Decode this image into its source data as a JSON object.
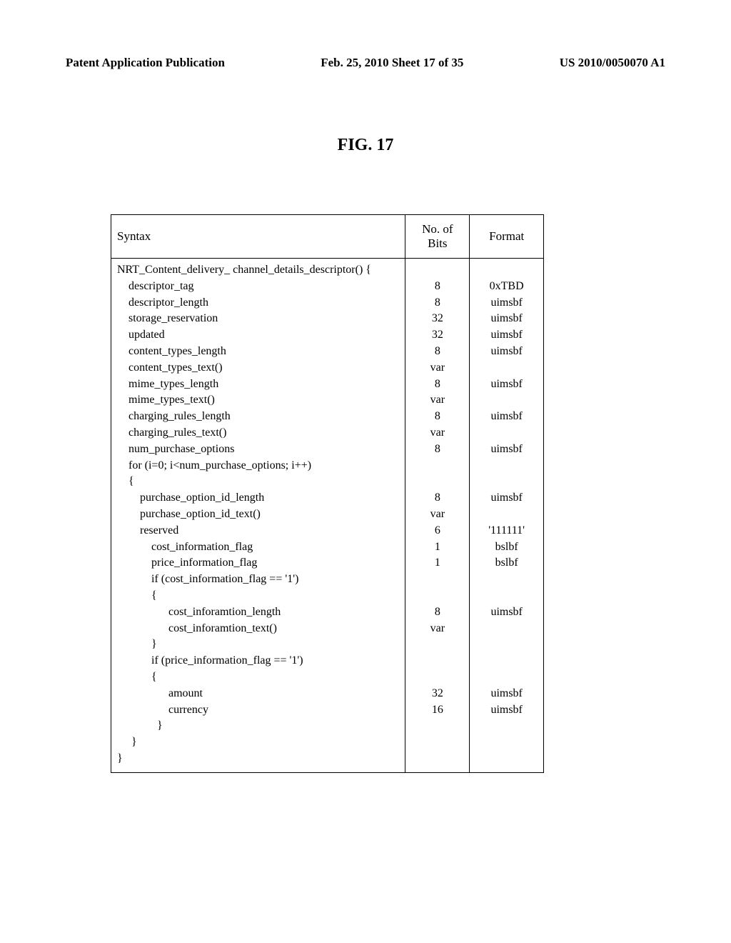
{
  "header": {
    "left": "Patent Application Publication",
    "center": "Feb. 25, 2010  Sheet 17 of 35",
    "right": "US 2010/0050070 A1"
  },
  "figure": {
    "title": "FIG. 17"
  },
  "table": {
    "columns": [
      "Syntax",
      "No. of Bits",
      "Format"
    ],
    "rows": [
      [
        "NRT_Content_delivery_ channel_details_descriptor() {",
        "",
        ""
      ],
      [
        "    descriptor_tag",
        "8",
        "0xTBD"
      ],
      [
        "    descriptor_length",
        "8",
        "uimsbf"
      ],
      [
        "    storage_reservation",
        "32",
        "uimsbf"
      ],
      [
        "    updated",
        "32",
        "uimsbf"
      ],
      [
        "    content_types_length",
        "8",
        "uimsbf"
      ],
      [
        "    content_types_text()",
        "var",
        ""
      ],
      [
        "    mime_types_length",
        "8",
        "uimsbf"
      ],
      [
        "    mime_types_text()",
        "var",
        ""
      ],
      [
        "    charging_rules_length",
        "8",
        "uimsbf"
      ],
      [
        "    charging_rules_text()",
        "var",
        ""
      ],
      [
        "    num_purchase_options",
        "8",
        "uimsbf"
      ],
      [
        "    for (i=0; i<num_purchase_options; i++)",
        "",
        ""
      ],
      [
        "    {",
        "",
        ""
      ],
      [
        "        purchase_option_id_length",
        "8",
        "uimsbf"
      ],
      [
        "        purchase_option_id_text()",
        "var",
        ""
      ],
      [
        "        reserved",
        "6",
        "'111111'"
      ],
      [
        "            cost_information_flag",
        "1",
        "bslbf"
      ],
      [
        "            price_information_flag",
        "1",
        "bslbf"
      ],
      [
        "            if (cost_information_flag == '1')",
        "",
        ""
      ],
      [
        "            {",
        "",
        ""
      ],
      [
        "                  cost_inforamtion_length",
        "8",
        "uimsbf"
      ],
      [
        "                  cost_inforamtion_text()",
        "var",
        ""
      ],
      [
        "            }",
        "",
        ""
      ],
      [
        "            if (price_information_flag == '1')",
        "",
        ""
      ],
      [
        "            {",
        "",
        ""
      ],
      [
        "                  amount",
        "32",
        "uimsbf"
      ],
      [
        "                  currency",
        "16",
        "uimsbf"
      ],
      [
        "              }",
        "",
        ""
      ],
      [
        "     }",
        "",
        ""
      ],
      [
        "}",
        "",
        ""
      ]
    ]
  }
}
